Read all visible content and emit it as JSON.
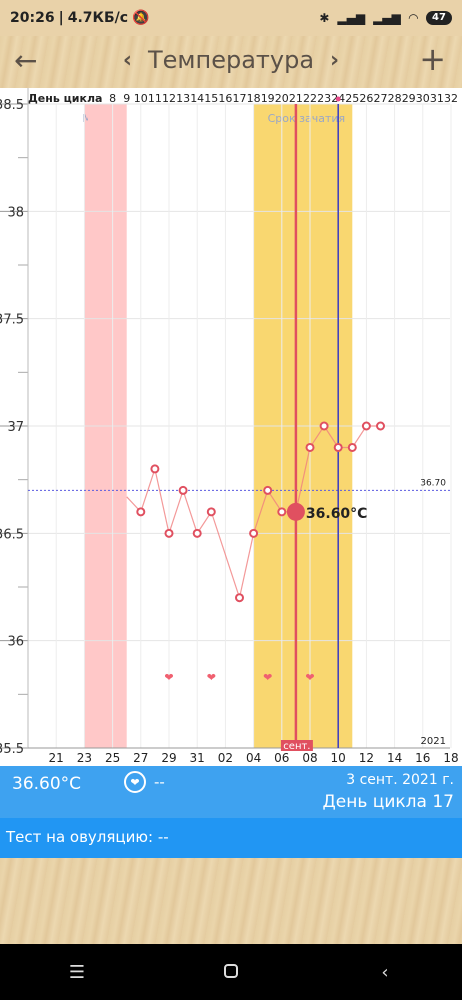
{
  "status": {
    "time": "20:26",
    "speed": "4.7КБ/с",
    "battery": "47"
  },
  "header": {
    "title": "Температура",
    "back_icon": "arrow-left-icon",
    "prev_icon": "chevron-left-icon",
    "next_icon": "chevron-right-icon",
    "add_icon": "plus-icon"
  },
  "chart_data": {
    "type": "line",
    "cycle_label": "День цикла",
    "cycle_days": [
      "8",
      "9",
      "10",
      "11",
      "12",
      "13",
      "14",
      "15",
      "16",
      "17",
      "18",
      "19",
      "20",
      "21",
      "22",
      "23",
      "24",
      "25",
      "26",
      "27",
      "28",
      "29",
      "30",
      "31",
      "32"
    ],
    "date_ticks": [
      "21",
      "23",
      "25",
      "27",
      "29",
      "31",
      "02",
      "04",
      "06",
      "08",
      "10",
      "12",
      "14",
      "16",
      "18"
    ],
    "y_ticks": [
      "38.5",
      "38",
      "37.5",
      "37",
      "36.5",
      "36",
      "35.5"
    ],
    "ylim": [
      35.5,
      38.5
    ],
    "menstruation_label": "Менструации",
    "fertile_label": "Срок зачатия",
    "month_label": "сент.",
    "year_label": "2021",
    "reference_line": 36.7,
    "reference_label": "36.70",
    "selected_value_label": "36.60°C",
    "series": [
      {
        "values": [
          {
            "day": 7,
            "temp": 36.67
          },
          {
            "day": 8,
            "temp": 36.6
          },
          {
            "day": 9,
            "temp": 36.8
          },
          {
            "day": 10,
            "temp": 36.5
          },
          {
            "day": 11,
            "temp": 36.7
          },
          {
            "day": 12,
            "temp": 36.5
          },
          {
            "day": 13,
            "temp": 36.6
          },
          {
            "day": 15,
            "temp": 36.2
          },
          {
            "day": 16,
            "temp": 36.5
          },
          {
            "day": 17,
            "temp": 36.7
          },
          {
            "day": 18,
            "temp": 36.6
          },
          {
            "day": 19,
            "temp": 36.6
          },
          {
            "day": 20,
            "temp": 36.9
          },
          {
            "day": 21,
            "temp": 37.0
          },
          {
            "day": 22,
            "temp": 36.9
          },
          {
            "day": 23,
            "temp": 36.9
          },
          {
            "day": 24,
            "temp": 37.0
          },
          {
            "day": 25,
            "temp": 37.0
          }
        ]
      }
    ],
    "heart_days": [
      10,
      13,
      17,
      20
    ],
    "selected_day": 19,
    "today_day": 22,
    "menstruation_days": [
      4,
      7
    ],
    "fertile_days": [
      16,
      23
    ]
  },
  "info": {
    "temperature": "36.60°C",
    "intercourse": "--",
    "date": "3 сент. 2021 г.",
    "cycle_day": "День цикла 17"
  },
  "ovulation_test": "Тест на овуляцию: --",
  "colors": {
    "menstruation": "#ffc8c8",
    "fertile": "#f9d770",
    "line": "#f08080",
    "selected_line": "#e05060",
    "today_line": "#3a3ac0",
    "info_bar": "#3ea2f0",
    "ovulation_bar": "#2196f3"
  }
}
